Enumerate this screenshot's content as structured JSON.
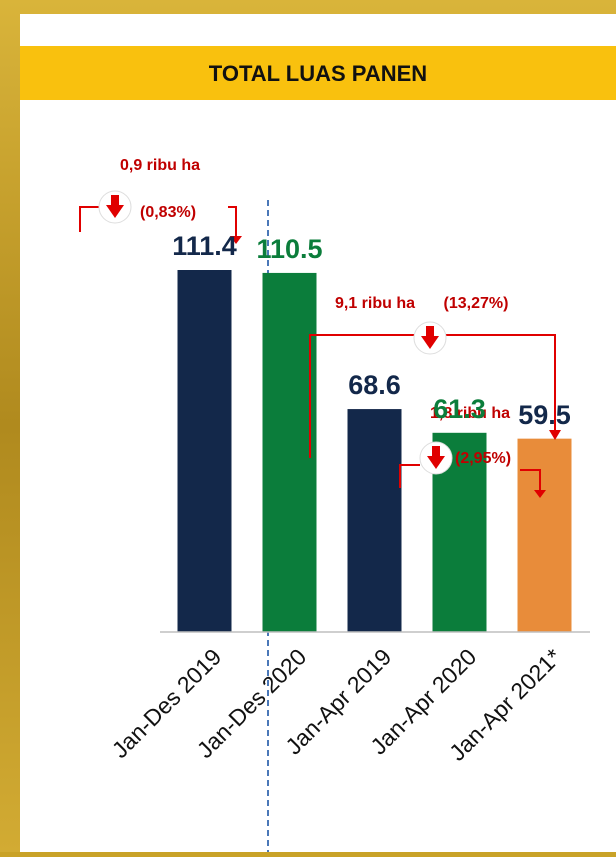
{
  "chart_data": {
    "type": "bar",
    "title": "TOTAL LUAS PANEN",
    "categories": [
      "Jan-Des 2019",
      "Jan-Des 2020",
      "Jan-Apr 2019",
      "Jan-Apr 2020",
      "Jan-Apr 2021*"
    ],
    "values": [
      111.4,
      110.5,
      68.6,
      61.3,
      59.5
    ],
    "colors": [
      "#13284a",
      "#0b7d3b",
      "#13284a",
      "#0b7d3b",
      "#e88c3a"
    ],
    "annotations": [
      "0,9 ribu ha",
      "(0,83%)",
      "9,1 ribu ha",
      "(13,27%)",
      "1,8 ribu ha",
      "(2,95%)"
    ]
  }
}
